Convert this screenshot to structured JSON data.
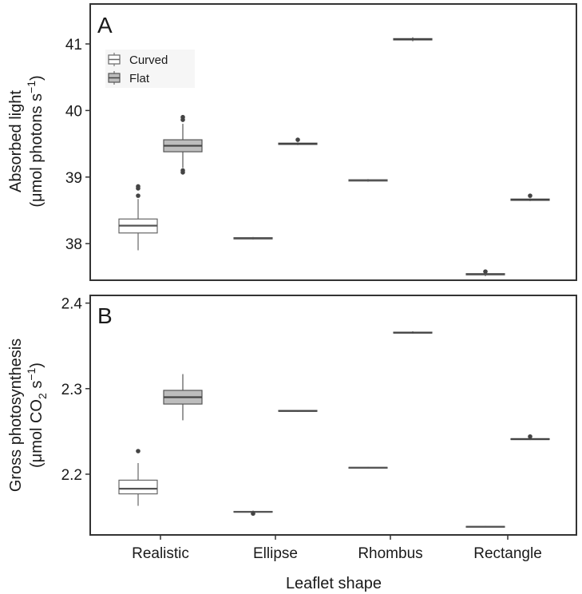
{
  "chart_data": {
    "type": "box",
    "xlabel": "Leaflet shape",
    "categories": [
      "Realistic",
      "Ellipse",
      "Rhombus",
      "Rectangle"
    ],
    "legend": {
      "placement": "top-left",
      "entries": [
        {
          "name": "Curved",
          "color": "#ffffff"
        },
        {
          "name": "Flat",
          "color": "#bdbdbd"
        }
      ]
    },
    "panels": [
      {
        "letter": "A",
        "ylabel_line1": "Absorbed light",
        "ylabel_line2": "(μmol photons s",
        "ylabel_sup": "−1",
        "ylabel_tail": ")",
        "ylim": [
          37.45,
          41.6
        ],
        "yticks": [
          "38",
          "39",
          "40",
          "41"
        ],
        "series": [
          {
            "name": "Curved",
            "boxes": [
              {
                "category": "Realistic",
                "min": 37.9,
                "q1": 38.16,
                "median": 38.27,
                "q3": 38.37,
                "max": 38.67,
                "outliers": [
                  38.72,
                  38.83,
                  38.86
                ]
              },
              {
                "category": "Ellipse",
                "min": 38.06,
                "q1": 38.07,
                "median": 38.08,
                "q3": 38.09,
                "max": 38.1,
                "outliers": []
              },
              {
                "category": "Rhombus",
                "min": 38.93,
                "q1": 38.94,
                "median": 38.95,
                "q3": 38.96,
                "max": 38.97,
                "outliers": []
              },
              {
                "category": "Rectangle",
                "min": 37.51,
                "q1": 37.53,
                "median": 37.54,
                "q3": 37.55,
                "max": 37.56,
                "outliers": [
                  37.58
                ]
              }
            ]
          },
          {
            "name": "Flat",
            "boxes": [
              {
                "category": "Realistic",
                "min": 39.14,
                "q1": 39.38,
                "median": 39.47,
                "q3": 39.56,
                "max": 39.8,
                "outliers": [
                  39.07,
                  39.1,
                  39.86,
                  39.9
                ]
              },
              {
                "category": "Ellipse",
                "min": 39.48,
                "q1": 39.49,
                "median": 39.5,
                "q3": 39.51,
                "max": 39.52,
                "outliers": [
                  39.56
                ]
              },
              {
                "category": "Rhombus",
                "min": 41.04,
                "q1": 41.06,
                "median": 41.07,
                "q3": 41.08,
                "max": 41.1,
                "outliers": []
              },
              {
                "category": "Rectangle",
                "min": 38.64,
                "q1": 38.65,
                "median": 38.66,
                "q3": 38.67,
                "max": 38.68,
                "outliers": [
                  38.72
                ]
              }
            ]
          }
        ]
      },
      {
        "letter": "B",
        "ylabel_line1": "Gross photosynthesis",
        "ylabel_line2": "(μmol CO",
        "ylabel_sub": "2",
        "ylabel_line2b": " s",
        "ylabel_sup": "−1",
        "ylabel_tail": ")",
        "ylim": [
          2.129,
          2.409
        ],
        "yticks": [
          "2.2",
          "2.3",
          "2.4"
        ],
        "series": [
          {
            "name": "Curved",
            "boxes": [
              {
                "category": "Realistic",
                "min": 2.163,
                "q1": 2.177,
                "median": 2.183,
                "q3": 2.193,
                "max": 2.213,
                "outliers": [
                  2.227
                ]
              },
              {
                "category": "Ellipse",
                "min": 2.1545,
                "q1": 2.1555,
                "median": 2.156,
                "q3": 2.1565,
                "max": 2.1575,
                "outliers": [
                  2.154
                ]
              },
              {
                "category": "Rhombus",
                "min": 2.2065,
                "q1": 2.207,
                "median": 2.2075,
                "q3": 2.208,
                "max": 2.2085,
                "outliers": []
              },
              {
                "category": "Rectangle",
                "min": 2.1375,
                "q1": 2.138,
                "median": 2.1385,
                "q3": 2.139,
                "max": 2.1395,
                "outliers": []
              }
            ]
          },
          {
            "name": "Flat",
            "boxes": [
              {
                "category": "Realistic",
                "min": 2.263,
                "q1": 2.282,
                "median": 2.29,
                "q3": 2.298,
                "max": 2.317,
                "outliers": []
              },
              {
                "category": "Ellipse",
                "min": 2.273,
                "q1": 2.2735,
                "median": 2.274,
                "q3": 2.2745,
                "max": 2.275,
                "outliers": []
              },
              {
                "category": "Rhombus",
                "min": 2.3645,
                "q1": 2.365,
                "median": 2.3655,
                "q3": 2.366,
                "max": 2.367,
                "outliers": []
              },
              {
                "category": "Rectangle",
                "min": 2.24,
                "q1": 2.2405,
                "median": 2.241,
                "q3": 2.2415,
                "max": 2.242,
                "outliers": [
                  2.244
                ]
              }
            ]
          }
        ]
      }
    ]
  }
}
